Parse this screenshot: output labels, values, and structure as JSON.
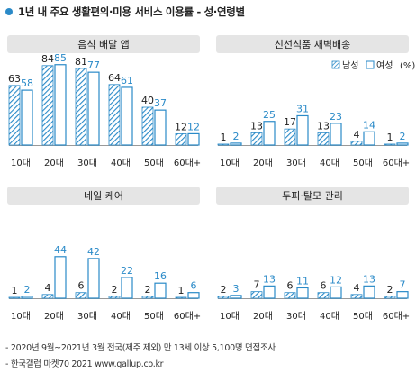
{
  "title": "1년 내 주요 생활편의·미용 서비스 이용률 - 성·연령별",
  "legend": {
    "male": "남성",
    "female": "여성",
    "unit": "(%)"
  },
  "colors": {
    "accent": "#2a8ac8",
    "panel_header_bg": "#e5e5e5",
    "axis": "#999999"
  },
  "footer": {
    "line1": "- 2020년 9월~2021년 3월 전국(제주 제외) 만 13세 이상 5,100명 면접조사",
    "line2": "- 한국갤럽 마켓70 2021 www.gallup.co.kr"
  },
  "chart_data": [
    {
      "type": "bar",
      "title": "음식 배달 앱",
      "categories": [
        "10대",
        "20대",
        "30대",
        "40대",
        "50대",
        "60대+"
      ],
      "series": [
        {
          "name": "남성",
          "values": [
            63,
            84,
            81,
            64,
            40,
            12
          ]
        },
        {
          "name": "여성",
          "values": [
            58,
            85,
            77,
            61,
            37,
            12
          ]
        }
      ],
      "ylim": [
        0,
        100
      ],
      "grid": false
    },
    {
      "type": "bar",
      "title": "신선식품 새벽배송",
      "categories": [
        "10대",
        "20대",
        "30대",
        "40대",
        "50대",
        "60대+"
      ],
      "series": [
        {
          "name": "남성",
          "values": [
            1,
            13,
            17,
            13,
            4,
            1
          ]
        },
        {
          "name": "여성",
          "values": [
            2,
            25,
            31,
            23,
            14,
            2
          ]
        }
      ],
      "ylim": [
        0,
        100
      ],
      "grid": false
    },
    {
      "type": "bar",
      "title": "네일 케어",
      "categories": [
        "10대",
        "20대",
        "30대",
        "40대",
        "50대",
        "60대+"
      ],
      "series": [
        {
          "name": "남성",
          "values": [
            1,
            4,
            6,
            2,
            2,
            1
          ]
        },
        {
          "name": "여성",
          "values": [
            2,
            44,
            42,
            22,
            16,
            6
          ]
        }
      ],
      "ylim": [
        0,
        100
      ],
      "grid": false
    },
    {
      "type": "bar",
      "title": "두피·탈모 관리",
      "categories": [
        "10대",
        "20대",
        "30대",
        "40대",
        "50대",
        "60대+"
      ],
      "series": [
        {
          "name": "남성",
          "values": [
            2,
            7,
            6,
            6,
            4,
            2
          ]
        },
        {
          "name": "여성",
          "values": [
            3,
            13,
            11,
            12,
            13,
            7
          ]
        }
      ],
      "ylim": [
        0,
        100
      ],
      "grid": false
    }
  ]
}
